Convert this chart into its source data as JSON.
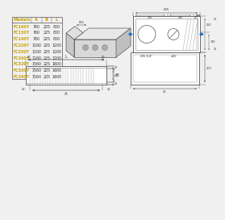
{
  "bg_color": "#f0f0f0",
  "line_color": "#555555",
  "table_text_color": "#333333",
  "table_header_color": "#c8a000",
  "blue_color": "#1a6acd",
  "table": {
    "headers": [
      "Modelo",
      "A",
      "B",
      "L"
    ],
    "rows": [
      [
        "FC100Y",
        "760",
        "225",
        "800"
      ],
      [
        "FC130Y",
        "760",
        "225",
        "800"
      ],
      [
        "FC140Y",
        "760",
        "225",
        "800"
      ],
      [
        "FC220Y",
        "1160",
        "225",
        "1200"
      ],
      [
        "FC230Y",
        "1160",
        "225",
        "1200"
      ],
      [
        "FC240Y",
        "1160",
        "225",
        "1200"
      ],
      [
        "FC320Y",
        "1560",
        "225",
        "1600"
      ],
      [
        "FC330Y",
        "1560",
        "225",
        "1600"
      ],
      [
        "FC340Y",
        "1560",
        "225",
        "1600"
      ]
    ]
  },
  "top_plan_dims": {
    "total_w": "605",
    "sec1": "310",
    "sec2": "235",
    "sec3": "40",
    "sec4": "20",
    "h1": "140",
    "h2": "250",
    "pipe_label1": "DN 3/4\"",
    "pipe_label2": "d20"
  }
}
